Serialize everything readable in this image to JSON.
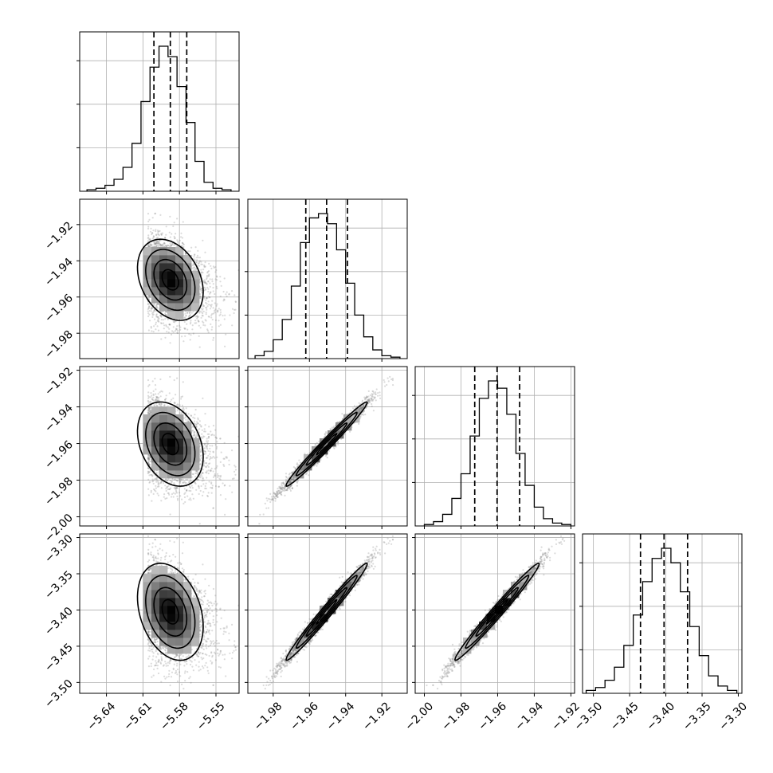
{
  "chart_data": {
    "type": "corner",
    "parameters": [
      {
        "index": 0,
        "mean": -5.5875,
        "sd": 0.0135,
        "lim": [
          -5.662,
          -5.531
        ],
        "ticks": [
          -5.64,
          -5.61,
          -5.58,
          -5.55
        ],
        "tick_labels": [
          "−5.64",
          "−5.61",
          "−5.58",
          "−5.55"
        ]
      },
      {
        "index": 1,
        "mean": -1.9505,
        "sd": 0.0112,
        "lim": [
          -1.994,
          -1.906
        ],
        "ticks": [
          -1.98,
          -1.96,
          -1.94,
          -1.92
        ],
        "tick_labels": [
          "−1.98",
          "−1.96",
          "−1.94",
          "−1.92"
        ]
      },
      {
        "index": 2,
        "mean": -1.9603,
        "sd": 0.0115,
        "lim": [
          -2.005,
          -1.918
        ],
        "ticks": [
          -2.0,
          -1.98,
          -1.96,
          -1.94,
          -1.92
        ],
        "tick_labels": [
          "−2.00",
          "−1.98",
          "−1.96",
          "−1.94",
          "−1.92"
        ]
      },
      {
        "index": 3,
        "mean": -3.4025,
        "sd": 0.0335,
        "lim": [
          -3.515,
          -3.295
        ],
        "ticks": [
          -3.5,
          -3.45,
          -3.4,
          -3.35,
          -3.3
        ],
        "tick_labels": [
          "−3.50",
          "−3.45",
          "−3.40",
          "−3.35",
          "−3.30"
        ]
      }
    ],
    "histograms": [
      {
        "param": 0,
        "quantiles": [
          -5.601,
          -5.5875,
          -5.574
        ],
        "bin_edges": [
          -5.656,
          -5.6486,
          -5.6412,
          -5.6338,
          -5.6264,
          -5.619,
          -5.6116,
          -5.6042,
          -5.5968,
          -5.5894,
          -5.582,
          -5.5746,
          -5.5672,
          -5.5598,
          -5.5524,
          -5.545,
          -5.5376
        ],
        "counts": [
          0.01,
          0.02,
          0.04,
          0.08,
          0.16,
          0.32,
          0.6,
          0.83,
          0.97,
          0.9,
          0.7,
          0.46,
          0.2,
          0.06,
          0.02,
          0.01
        ]
      },
      {
        "param": 1,
        "quantiles": [
          -1.962,
          -1.9505,
          -1.939
        ],
        "bin_edges": [
          -1.99,
          -1.985,
          -1.98,
          -1.975,
          -1.97,
          -1.965,
          -1.96,
          -1.955,
          -1.95,
          -1.945,
          -1.94,
          -1.935,
          -1.93,
          -1.925,
          -1.92,
          -1.915,
          -1.91
        ],
        "counts": [
          0.02,
          0.05,
          0.13,
          0.27,
          0.5,
          0.8,
          0.97,
          1.0,
          0.93,
          0.75,
          0.52,
          0.3,
          0.15,
          0.06,
          0.02,
          0.01
        ]
      },
      {
        "param": 2,
        "quantiles": [
          -1.9725,
          -1.9603,
          -1.948
        ],
        "bin_edges": [
          -2.0,
          -1.995,
          -1.99,
          -1.985,
          -1.98,
          -1.975,
          -1.97,
          -1.965,
          -1.96,
          -1.955,
          -1.95,
          -1.945,
          -1.94,
          -1.935,
          -1.93,
          -1.925,
          -1.92
        ],
        "counts": [
          0.01,
          0.03,
          0.08,
          0.19,
          0.36,
          0.62,
          0.88,
          1.0,
          0.95,
          0.77,
          0.5,
          0.28,
          0.13,
          0.05,
          0.02,
          0.01
        ]
      },
      {
        "param": 3,
        "quantiles": [
          -3.435,
          -3.4025,
          -3.37
        ],
        "bin_edges": [
          -3.51,
          -3.497,
          -3.484,
          -3.471,
          -3.458,
          -3.445,
          -3.432,
          -3.419,
          -3.406,
          -3.393,
          -3.38,
          -3.367,
          -3.354,
          -3.341,
          -3.328,
          -3.315,
          -3.302
        ],
        "counts": [
          0.02,
          0.04,
          0.09,
          0.18,
          0.33,
          0.54,
          0.77,
          0.93,
          1.0,
          0.9,
          0.7,
          0.46,
          0.26,
          0.12,
          0.05,
          0.02
        ]
      }
    ],
    "scatter_2d": [
      {
        "x_param": 0,
        "y_param": 1,
        "correlation": -0.3
      },
      {
        "x_param": 0,
        "y_param": 2,
        "correlation": -0.3
      },
      {
        "x_param": 1,
        "y_param": 2,
        "correlation": 0.985
      },
      {
        "x_param": 0,
        "y_param": 3,
        "correlation": -0.3
      },
      {
        "x_param": 1,
        "y_param": 3,
        "correlation": 0.985
      },
      {
        "x_param": 2,
        "y_param": 3,
        "correlation": 0.985
      }
    ],
    "grid": true,
    "colors": {
      "line": "#000000",
      "grid": "#b0b0b0",
      "points": "#808080"
    }
  }
}
